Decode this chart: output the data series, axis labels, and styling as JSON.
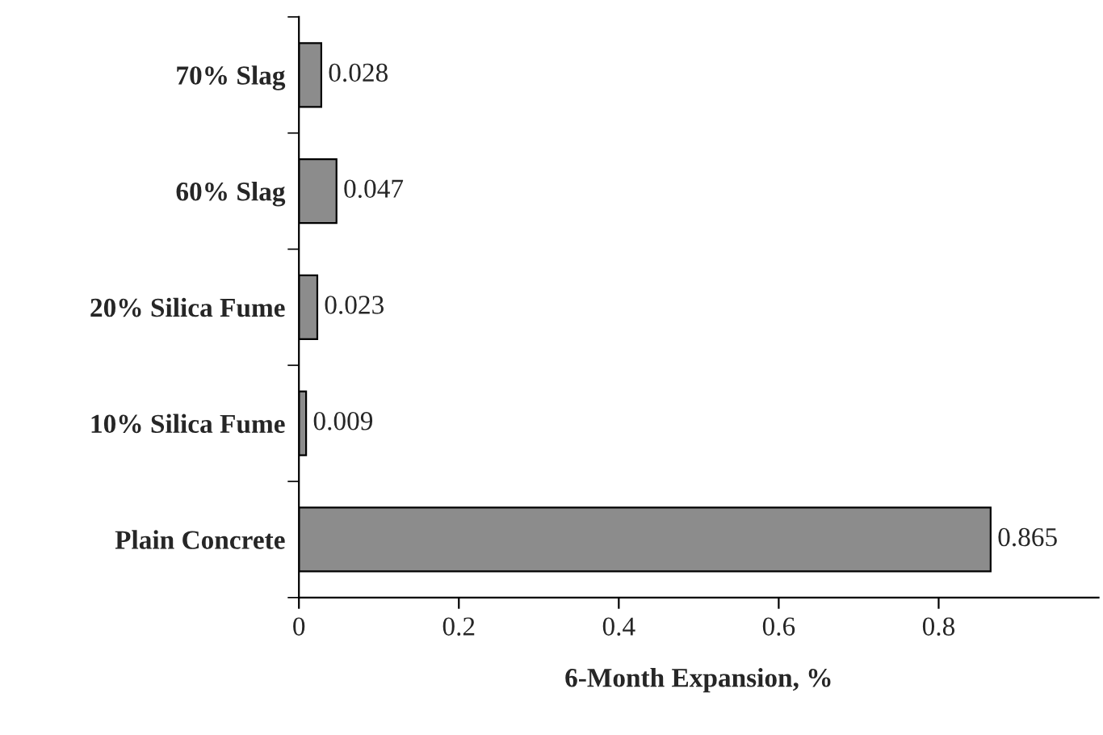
{
  "chart_data": {
    "type": "bar",
    "orientation": "horizontal",
    "xlabel": "6-Month Expansion, %",
    "categories": [
      "70% Slag",
      "60% Slag",
      "20% Silica Fume",
      "10% Silica Fume",
      "Plain Concrete"
    ],
    "values": [
      0.028,
      0.047,
      0.023,
      0.009,
      0.865
    ],
    "color": "#8c8c8c",
    "xlim": [
      0,
      1.0
    ],
    "xticks": [
      0,
      0.2,
      0.4,
      0.6,
      0.8
    ],
    "data_labels": true,
    "grid": false
  }
}
